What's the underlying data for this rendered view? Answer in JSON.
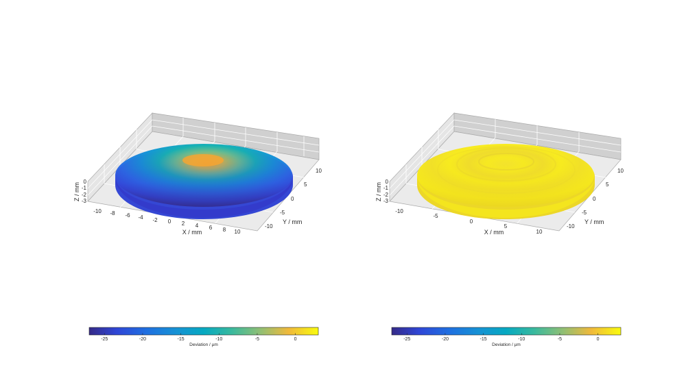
{
  "chart_data": [
    {
      "type": "surface",
      "xlabel": "X / mm",
      "ylabel": "Y / mm",
      "zlabel": "Z / mm",
      "x_ticks": [
        "-10",
        "-8",
        "-6",
        "-4",
        "-2",
        "0",
        "2",
        "4",
        "6",
        "8",
        "10"
      ],
      "y_ticks": [
        "-10",
        "-5",
        "0",
        "5",
        "10"
      ],
      "z_ticks": [
        "0",
        "-1",
        "-2",
        "-3"
      ],
      "xlim": [
        -11,
        11
      ],
      "ylim": [
        -11,
        11
      ],
      "zlim": [
        -3,
        0
      ],
      "grid": true,
      "surface_shape": "spherical cap",
      "deviation_range": [
        -27,
        3
      ],
      "peak_deviation": 2,
      "edge_deviation": -24,
      "colorbar": {
        "label": "Deviation / µm",
        "ticks": [
          "-25",
          "-20",
          "-15",
          "-10",
          "-5",
          "0"
        ],
        "range": [
          -27,
          3
        ],
        "colormap": "parula"
      }
    },
    {
      "type": "surface",
      "xlabel": "X / mm",
      "ylabel": "Y / mm",
      "zlabel": "Z / mm",
      "x_ticks": [
        "-10",
        "-5",
        "0",
        "5",
        "10"
      ],
      "y_ticks": [
        "-10",
        "-5",
        "0",
        "5",
        "10"
      ],
      "z_ticks": [
        "0",
        "-1",
        "-2",
        "-3"
      ],
      "xlim": [
        -11,
        11
      ],
      "ylim": [
        -11,
        11
      ],
      "zlim": [
        -3,
        0
      ],
      "grid": true,
      "surface_shape": "spherical cap",
      "deviation_range": [
        -27,
        3
      ],
      "peak_deviation": 0,
      "edge_deviation": 0,
      "colorbar": {
        "label": "Deviation / µm",
        "ticks": [
          "-25",
          "-20",
          "-15",
          "-10",
          "-5",
          "0"
        ],
        "range": [
          -27,
          3
        ],
        "colormap": "parula"
      }
    }
  ],
  "colors": {
    "pane_left": "#e5e5e5",
    "pane_right": "#cfcfcf",
    "pane_floor": "#ebebeb",
    "grid": "#ffffff",
    "text": "#262626"
  }
}
